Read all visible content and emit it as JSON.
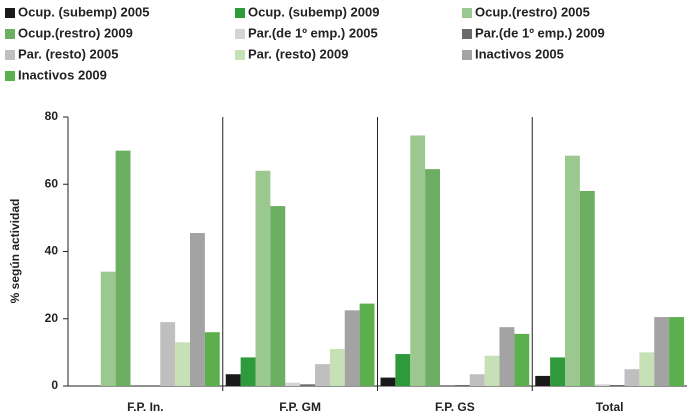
{
  "chart_data": {
    "type": "bar",
    "ylabel": "% según actividad",
    "categories": [
      "F.P. In.",
      "F.P. GM",
      "F.P. GS",
      "Total"
    ],
    "series": [
      {
        "name": "Ocup. (subemp) 2005",
        "color": "#1a1a1a",
        "values": [
          0,
          3.5,
          2.5,
          3
        ]
      },
      {
        "name": "Ocup. (subemp) 2009",
        "color": "#2f9a3c",
        "values": [
          0,
          8.5,
          9.5,
          8.5
        ]
      },
      {
        "name": "Ocup.(restro) 2005",
        "color": "#9bc88e",
        "values": [
          34,
          64,
          74.5,
          68.5
        ]
      },
      {
        "name": "Ocup.(restro) 2009",
        "color": "#6daf62",
        "values": [
          70,
          53.5,
          64.5,
          58
        ]
      },
      {
        "name": "Par.(de 1º emp.) 2005",
        "color": "#d4d4d4",
        "values": [
          0,
          1,
          0,
          0.5
        ]
      },
      {
        "name": "Par.(de 1º emp.) 2009",
        "color": "#6b6b6b",
        "values": [
          0,
          0.5,
          0.3,
          0.3
        ]
      },
      {
        "name": "Par. (resto) 2005",
        "color": "#bfbfbf",
        "values": [
          19,
          6.5,
          3.5,
          5
        ]
      },
      {
        "name": "Par. (resto) 2009",
        "color": "#c5e1b5",
        "values": [
          13,
          11,
          9,
          10
        ]
      },
      {
        "name": "Inactivos 2005",
        "color": "#a3a3a3",
        "values": [
          45.5,
          22.5,
          17.5,
          20.5
        ]
      },
      {
        "name": "Inactivos 2009",
        "color": "#5bb04d",
        "values": [
          16,
          24.5,
          15.5,
          20.5
        ]
      }
    ],
    "ylim": [
      0,
      80
    ],
    "yticks": [
      0,
      20,
      40,
      60,
      80
    ]
  }
}
